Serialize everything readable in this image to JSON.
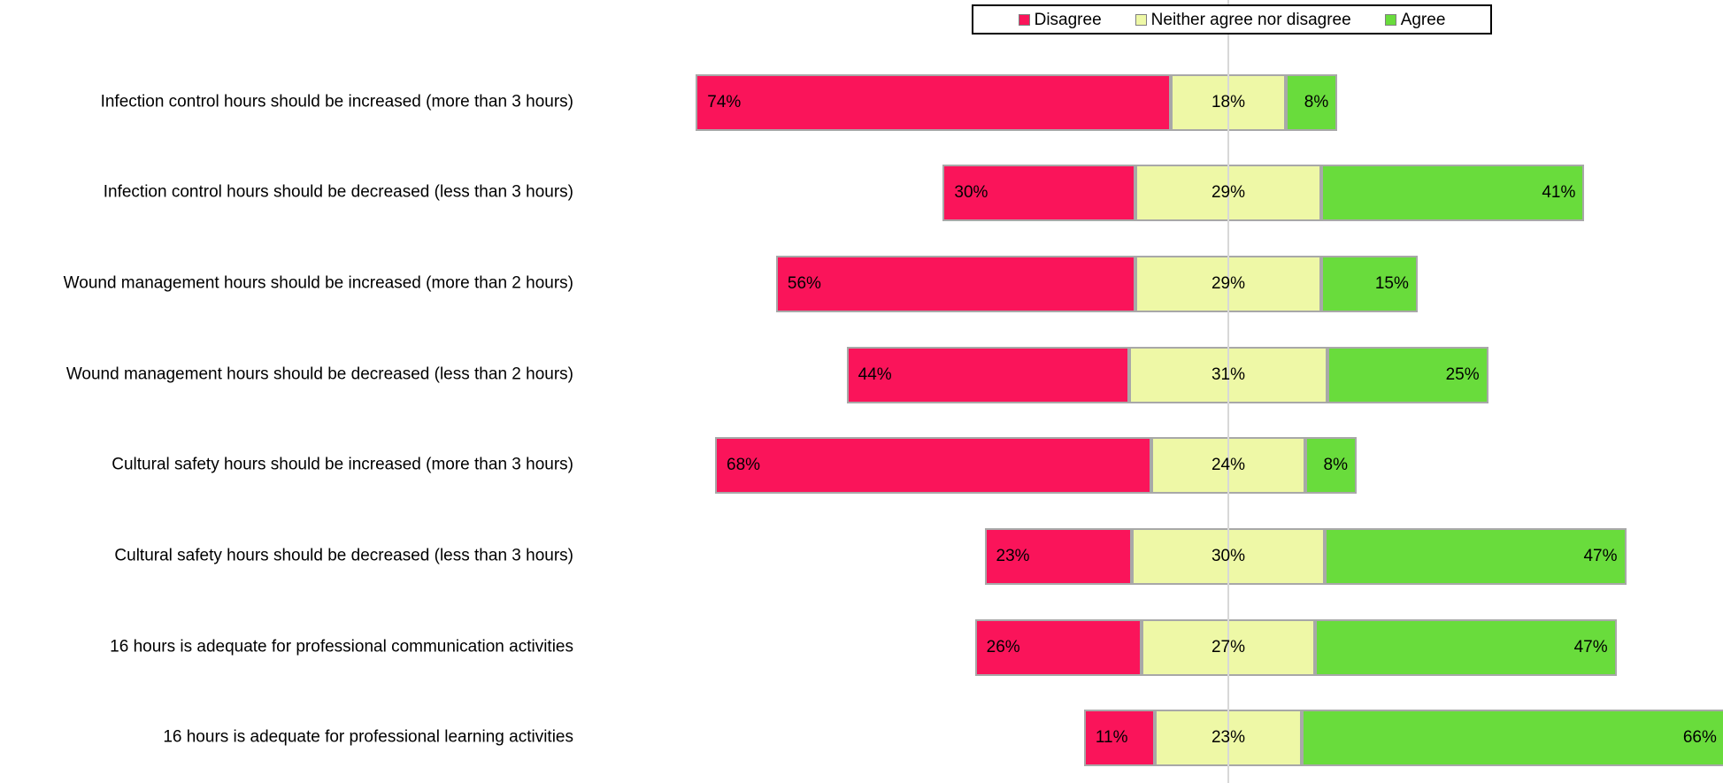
{
  "chart_data": {
    "type": "bar",
    "subtype": "horizontal-diverging-stacked",
    "title": "",
    "value_suffix": "%",
    "legend_position": "top-right",
    "grid": "center-vertical-line-only",
    "categories": [
      "Infection control hours should be increased (more than 3 hours)",
      "Infection control hours should be decreased (less than 3 hours)",
      "Wound management hours should be increased (more than 2 hours)",
      "Wound management hours should be decreased (less than 2 hours)",
      "Cultural safety hours should be increased (more than 3 hours)",
      "Cultural safety hours should be decreased (less than 3 hours)",
      "16 hours is adequate for professional communication activities",
      "16 hours is adequate for professional learning activities"
    ],
    "series": [
      {
        "name": "Disagree",
        "color": "#fa145a",
        "values": [
          74,
          30,
          56,
          44,
          68,
          23,
          26,
          11
        ]
      },
      {
        "name": "Neither agree nor disagree",
        "color": "#eef8a6",
        "values": [
          18,
          29,
          29,
          31,
          24,
          30,
          27,
          23
        ]
      },
      {
        "name": "Agree",
        "color": "#69dc3c",
        "values": [
          8,
          41,
          15,
          25,
          8,
          47,
          47,
          66
        ]
      }
    ],
    "alignment_rule": "bars centered so midpoint of neutral segment sits on the center line"
  },
  "style": {
    "segment_border_color": "#a8a8a8",
    "gridline_color": "#d8d8d8",
    "legend_border_color": "#000000",
    "text_color": "#000000"
  }
}
